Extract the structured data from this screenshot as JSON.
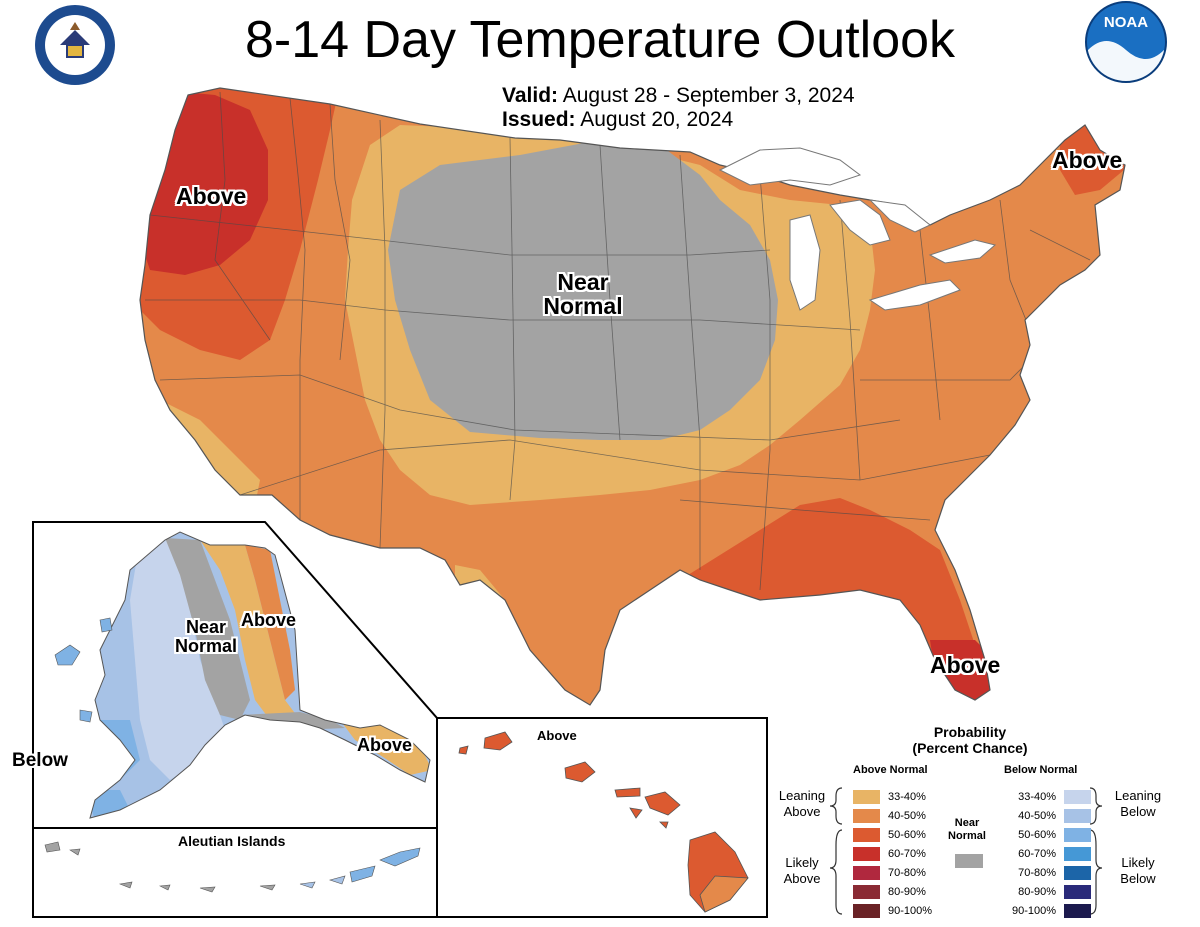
{
  "header": {
    "title": "8-14 Day Temperature Outlook",
    "valid_label": "Valid:",
    "valid_value": "August 28 - September 3, 2024",
    "issued_label": "Issued:",
    "issued_value": "August 20, 2024"
  },
  "logos": {
    "doc_seal_text": "DEPARTMENT OF COMMERCE · UNITED STATES OF AMERICA",
    "noaa_text": "NOAA"
  },
  "map_labels": {
    "west_above": "Above",
    "maine_above": "Above",
    "central_near_1": "Near",
    "central_near_2": "Normal",
    "florida_above": "Above",
    "alaska_near_1": "Near",
    "alaska_near_2": "Normal",
    "alaska_above": "Above",
    "alaska_se_above": "Above",
    "alaska_below": "Below",
    "aleutian_title": "Aleutian Islands",
    "hawaii_above": "Above"
  },
  "legend": {
    "title_1": "Probability",
    "title_2": "(Percent Chance)",
    "above_header": "Above Normal",
    "below_header": "Below Normal",
    "near_label_1": "Near",
    "near_label_2": "Normal",
    "leaning_above_1": "Leaning",
    "leaning_above_2": "Above",
    "likely_above_1": "Likely",
    "likely_above_2": "Above",
    "leaning_below_1": "Leaning",
    "leaning_below_2": "Below",
    "likely_below_1": "Likely",
    "likely_below_2": "Below",
    "above_categories": [
      {
        "range": "33-40%",
        "color": "#e8b465"
      },
      {
        "range": "40-50%",
        "color": "#e4894a"
      },
      {
        "range": "50-60%",
        "color": "#dc5a30"
      },
      {
        "range": "60-70%",
        "color": "#c8302a"
      },
      {
        "range": "70-80%",
        "color": "#b0283e"
      },
      {
        "range": "80-90%",
        "color": "#8a2a34"
      },
      {
        "range": "90-100%",
        "color": "#6a2226"
      }
    ],
    "below_categories": [
      {
        "range": "33-40%",
        "color": "#c6d4ec"
      },
      {
        "range": "40-50%",
        "color": "#a7c2e6"
      },
      {
        "range": "50-60%",
        "color": "#7fb2e4"
      },
      {
        "range": "60-70%",
        "color": "#4598d6"
      },
      {
        "range": "70-80%",
        "color": "#1c65a8"
      },
      {
        "range": "80-90%",
        "color": "#2a2a7a"
      },
      {
        "range": "90-100%",
        "color": "#1c1a4e"
      }
    ],
    "near_color": "#a3a3a3"
  },
  "colors": {
    "lean_above": "#e8b465",
    "above_40": "#e4894a",
    "above_50": "#dc5a30",
    "above_60": "#c8302a",
    "near_normal": "#a3a3a3",
    "below_33": "#c6d4ec",
    "below_40": "#a7c2e6",
    "below_50": "#7fb2e4",
    "great_lakes": "#ffffff"
  }
}
